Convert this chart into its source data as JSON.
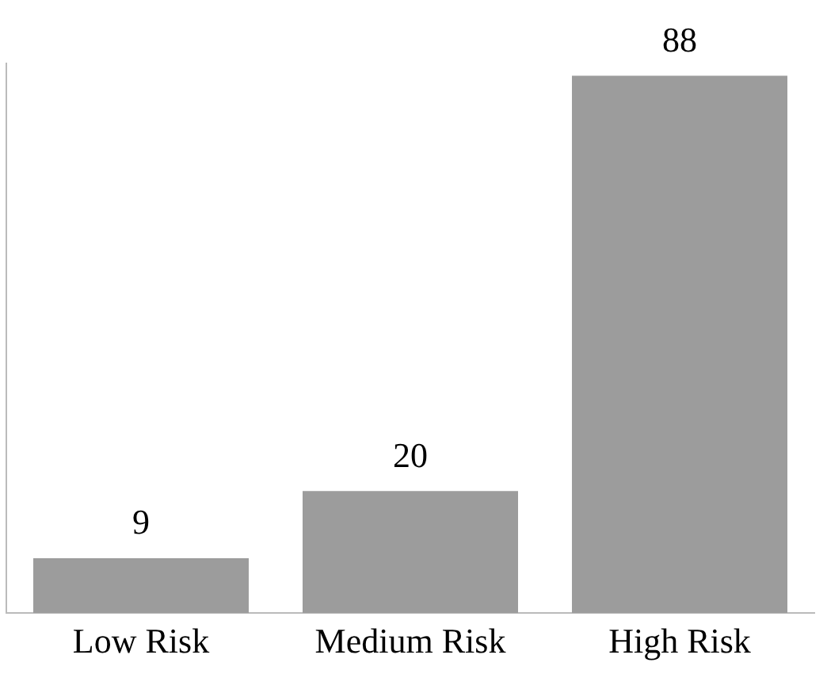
{
  "chart_data": {
    "type": "bar",
    "categories": [
      "Low Risk",
      "Medium Risk",
      "High Risk"
    ],
    "values": [
      9,
      20,
      88
    ],
    "color": "#9c9c9c",
    "data_labels": true,
    "grid": false,
    "legend": false,
    "tick_labels": "x"
  }
}
